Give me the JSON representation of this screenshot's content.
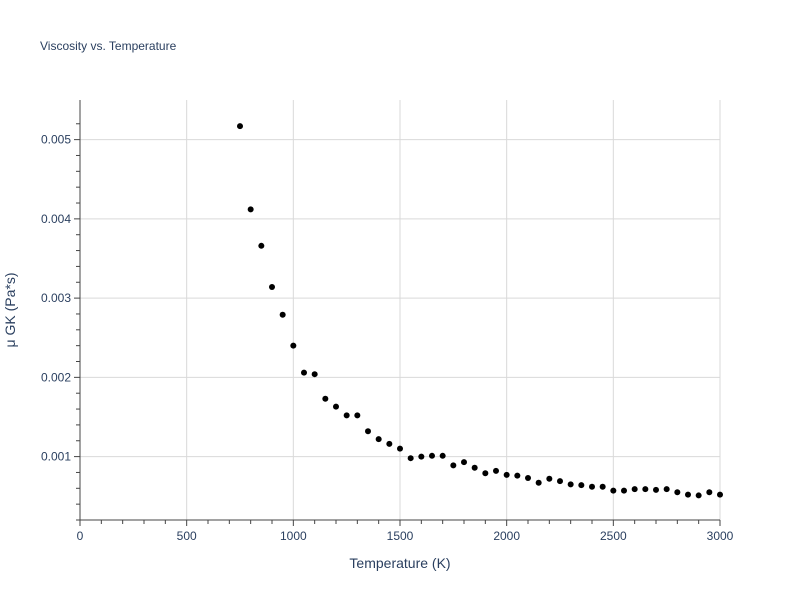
{
  "chart_data": {
    "type": "scatter",
    "title": "Viscosity vs. Temperature",
    "xlabel": "Temperature (K)",
    "ylabel": "μ GK (Pa*s)",
    "xlim": [
      0,
      3000
    ],
    "ylim": [
      0.0002,
      0.0055
    ],
    "xticks": [
      0,
      500,
      1000,
      1500,
      2000,
      2500,
      3000
    ],
    "xtick_labels": [
      "0",
      "500",
      "1000",
      "1500",
      "2000",
      "2500",
      "3000"
    ],
    "yticks": [
      0.001,
      0.002,
      0.003,
      0.004,
      0.005
    ],
    "ytick_labels": [
      "0.001",
      "0.002",
      "0.003",
      "0.004",
      "0.005"
    ],
    "grid": true,
    "marker_color": "#000000",
    "series": [
      {
        "x": [
          750,
          800,
          850,
          900,
          950,
          1000,
          1050,
          1100,
          1150,
          1200,
          1250,
          1300,
          1350,
          1400,
          1450,
          1500,
          1550,
          1600,
          1650,
          1700,
          1750,
          1800,
          1850,
          1900,
          1950,
          2000,
          2050,
          2100,
          2150,
          2200,
          2250,
          2300,
          2350,
          2400,
          2450,
          2500,
          2550,
          2600,
          2650,
          2700,
          2750,
          2800,
          2850,
          2900,
          2950,
          3000
        ],
        "y": [
          0.00517,
          0.00412,
          0.00366,
          0.00314,
          0.00279,
          0.0024,
          0.00206,
          0.00204,
          0.00173,
          0.00163,
          0.00152,
          0.00152,
          0.00132,
          0.00122,
          0.00116,
          0.0011,
          0.00098,
          0.001,
          0.00101,
          0.00101,
          0.00089,
          0.00093,
          0.00086,
          0.00079,
          0.00082,
          0.00077,
          0.00076,
          0.00073,
          0.00067,
          0.00072,
          0.00069,
          0.00065,
          0.00064,
          0.00062,
          0.00062,
          0.00057,
          0.00057,
          0.00059,
          0.00059,
          0.00058,
          0.00059,
          0.00055,
          0.00052,
          0.00051,
          0.00055,
          0.00052
        ]
      }
    ]
  }
}
